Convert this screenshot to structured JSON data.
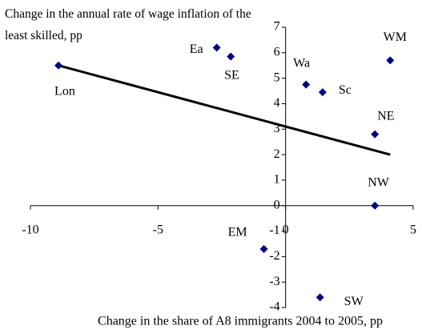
{
  "chart_data": {
    "type": "scatter",
    "title": "Change in the annual rate of wage inflation of the least skilled, pp",
    "x_label": "Change in the share of A8 immigrants 2004 to 2005, pp",
    "labels": [
      "Lon",
      "Ea",
      "SE",
      "Wa",
      "Sc",
      "WM",
      "NE",
      "NW",
      "EM",
      "SW"
    ],
    "x": [
      -8.9,
      -2.7,
      -2.15,
      0.8,
      1.45,
      4.1,
      3.5,
      3.5,
      -0.85,
      1.35
    ],
    "y": [
      5.5,
      6.2,
      5.85,
      4.75,
      4.45,
      5.7,
      2.8,
      0,
      -1.7,
      -3.6
    ],
    "color": "#000080",
    "trendline": {
      "x": [
        -8.9,
        4.1
      ],
      "y": [
        5.5,
        2.0
      ],
      "color": "#000000"
    },
    "xlim": [
      -10,
      5
    ],
    "xticks": [
      -10,
      -5,
      0,
      5
    ],
    "ylim": [
      -4,
      7
    ],
    "yticks": [
      -4,
      -3,
      -2,
      -1,
      0,
      1,
      2,
      3,
      4,
      5,
      6,
      7
    ]
  }
}
